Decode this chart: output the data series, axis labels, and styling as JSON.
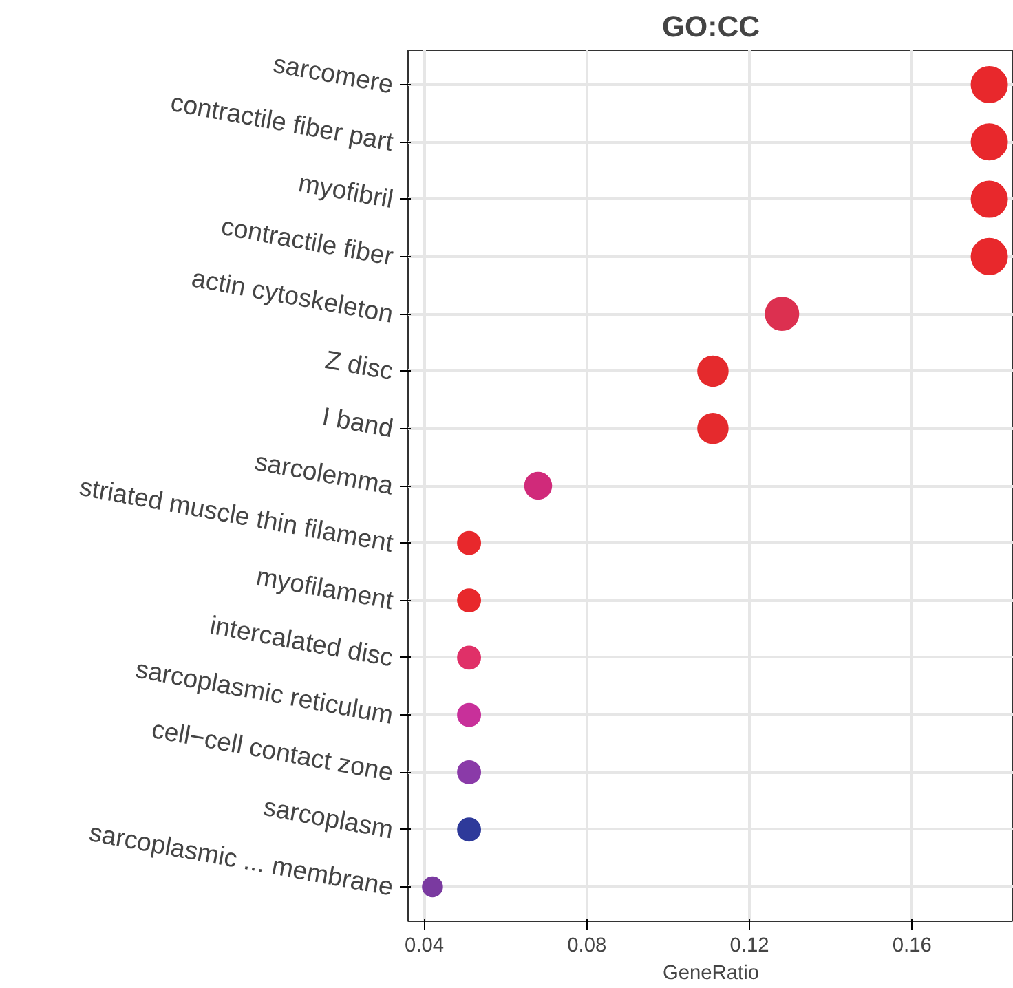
{
  "chart_data": {
    "type": "bubble",
    "title": "GO:CC",
    "xlabel": "GeneRatio",
    "categories": [
      "sarcomere",
      "contractile fiber part",
      "myofibril",
      "contractile fiber",
      "actin cytoskeleton",
      "Z disc",
      "I band",
      "sarcolemma",
      "striated muscle thin filament",
      "myofilament",
      "intercalated disc",
      "sarcoplasmic reticulum",
      "cell−cell contact zone",
      "sarcoplasm",
      "sarcoplasmic ... membrane"
    ],
    "orientation": "horizontal",
    "values": [
      0.179,
      0.179,
      0.179,
      0.179,
      0.128,
      0.111,
      0.111,
      0.068,
      0.051,
      0.051,
      0.051,
      0.051,
      0.051,
      0.051,
      0.042
    ],
    "sizes": [
      1,
      1,
      1,
      1,
      0.85,
      0.7,
      0.7,
      0.55,
      0.4,
      0.4,
      0.4,
      0.4,
      0.4,
      0.4,
      0.3
    ],
    "colors": [
      "#e8282c",
      "#e8282c",
      "#e8282c",
      "#e8282c",
      "#dc3050",
      "#e52a2d",
      "#e52a2d",
      "#d02a7a",
      "#e8282c",
      "#e8282c",
      "#e03068",
      "#c8309a",
      "#8a3aa8",
      "#2e3a9a",
      "#7a3aa0"
    ],
    "xlim": [
      0.036,
      0.185
    ],
    "xticks": [
      0.04,
      0.08,
      0.12,
      0.16
    ],
    "grid": true
  }
}
